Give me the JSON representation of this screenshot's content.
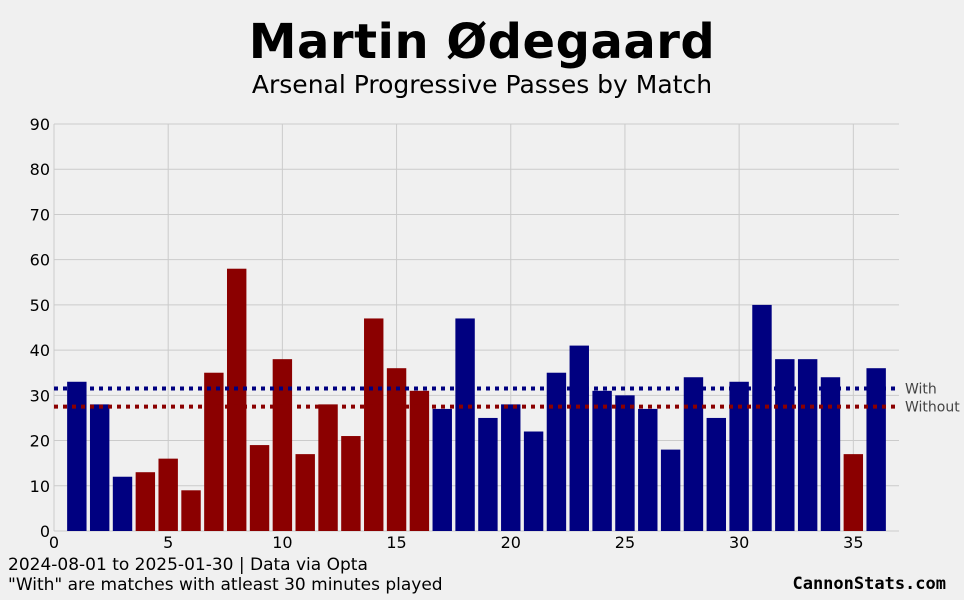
{
  "header": {
    "title": "Martin Ødegaard",
    "subtitle": "Arsenal Progressive Passes by Match"
  },
  "footer": {
    "line1": "2024-08-01 to 2025-01-30 | Data via Opta",
    "line2": "\"With\" are matches with atleast 30 minutes played",
    "brand": "CannonStats.com"
  },
  "colors": {
    "with": "#000080",
    "without": "#8b0000",
    "background": "#f0f0f0",
    "grid": "#cbcbcb"
  },
  "chart_data": {
    "type": "bar",
    "title": "Martin Ødegaard",
    "subtitle": "Arsenal Progressive Passes by Match",
    "xlabel": "",
    "ylabel": "",
    "xlim": [
      0,
      37
    ],
    "ylim": [
      0,
      90
    ],
    "xticks": [
      0,
      5,
      10,
      15,
      20,
      25,
      30,
      35
    ],
    "yticks": [
      0,
      10,
      20,
      30,
      40,
      50,
      60,
      70,
      80,
      90
    ],
    "grid": true,
    "x": [
      1,
      2,
      3,
      4,
      5,
      6,
      7,
      8,
      9,
      10,
      11,
      12,
      13,
      14,
      15,
      16,
      17,
      18,
      19,
      20,
      21,
      22,
      23,
      24,
      25,
      26,
      27,
      28,
      29,
      30,
      31,
      32,
      33,
      34,
      35,
      36
    ],
    "values": [
      33,
      28,
      12,
      13,
      16,
      9,
      35,
      58,
      19,
      38,
      17,
      28,
      21,
      47,
      36,
      31,
      27,
      47,
      25,
      28,
      22,
      35,
      41,
      31,
      30,
      27,
      18,
      34,
      25,
      33,
      50,
      38,
      38,
      34,
      17,
      36
    ],
    "groups": [
      "With",
      "With",
      "With",
      "Without",
      "Without",
      "Without",
      "Without",
      "Without",
      "Without",
      "Without",
      "Without",
      "Without",
      "Without",
      "Without",
      "Without",
      "Without",
      "With",
      "With",
      "With",
      "With",
      "With",
      "With",
      "With",
      "With",
      "With",
      "With",
      "With",
      "With",
      "With",
      "With",
      "With",
      "With",
      "With",
      "With",
      "Without",
      "With"
    ],
    "reference_lines": [
      {
        "label": "With",
        "value": 31.5
      },
      {
        "label": "Without",
        "value": 27.5
      }
    ]
  }
}
